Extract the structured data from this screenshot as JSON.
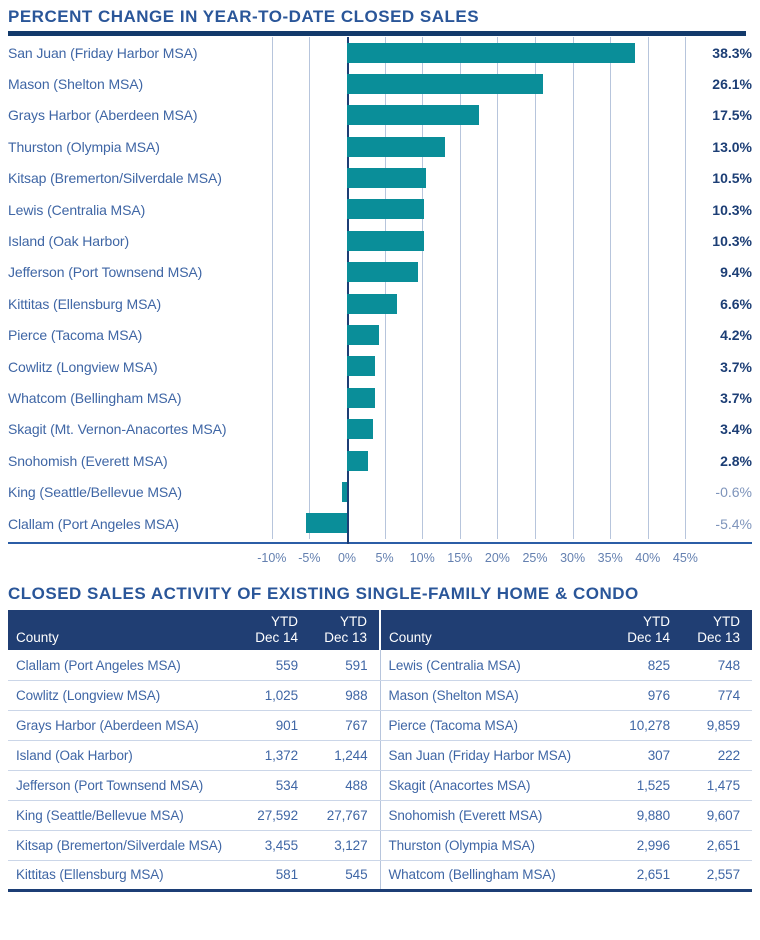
{
  "colors": {
    "bar_teal": "#0a8e99",
    "title_blue": "#2a5699",
    "rule_navy": "#133a6b",
    "label_blue": "#3f66a5",
    "tick_blue": "#6480b0",
    "gridline_blue": "#b7c5dc",
    "baseline_blue": "#2b5da6",
    "value_navy": "#1c3e75",
    "negative_value_blue": "#7e94bb",
    "table_header_bg": "#203e73",
    "row_divider": "#cbd6e8"
  },
  "chart_data": {
    "type": "bar",
    "orientation": "horizontal",
    "title": "PERCENT CHANGE IN YEAR-TO-DATE CLOSED SALES",
    "categories": [
      "San Juan (Friday Harbor MSA)",
      "Mason (Shelton MSA)",
      "Grays Harbor (Aberdeen MSA)",
      "Thurston (Olympia MSA)",
      "Kitsap (Bremerton/Silverdale MSA)",
      "Lewis (Centralia MSA)",
      "Island (Oak Harbor)",
      "Jefferson (Port Townsend MSA)",
      "Kittitas (Ellensburg MSA)",
      "Pierce (Tacoma MSA)",
      "Cowlitz (Longview MSA)",
      "Whatcom (Bellingham MSA)",
      "Skagit (Mt. Vernon-Anacortes MSA)",
      "Snohomish (Everett MSA)",
      "King (Seattle/Bellevue MSA)",
      "Clallam (Port Angeles MSA)"
    ],
    "values": [
      38.3,
      26.1,
      17.5,
      13.0,
      10.5,
      10.3,
      10.3,
      9.4,
      6.6,
      4.2,
      3.7,
      3.7,
      3.4,
      2.8,
      -0.6,
      -5.4
    ],
    "value_labels": [
      "38.3%",
      "26.1%",
      "17.5%",
      "13.0%",
      "10.5%",
      "10.3%",
      "10.3%",
      "9.4%",
      "6.6%",
      "4.2%",
      "3.7%",
      "3.7%",
      "3.4%",
      "2.8%",
      "-0.6%",
      "-5.4%"
    ],
    "x_tick_values": [
      -10,
      -5,
      0,
      5,
      10,
      15,
      20,
      25,
      30,
      35,
      40,
      45
    ],
    "x_tick_labels": [
      "-10%",
      "-5%",
      "0%",
      "5%",
      "10%",
      "15%",
      "20%",
      "25%",
      "30%",
      "35%",
      "40%",
      "45%"
    ],
    "xlim": [
      -12.5,
      47.5
    ],
    "grid": true,
    "legend": "none",
    "bar_color": "#0a8e99"
  },
  "table": {
    "title": "CLOSED SALES ACTIVITY OF EXISTING SINGLE-FAMILY HOME & CONDO",
    "header": {
      "county": "County",
      "cols": [
        {
          "line1": "YTD",
          "line2": "Dec 14"
        },
        {
          "line1": "YTD",
          "line2": "Dec 13"
        }
      ]
    },
    "rows_left": [
      {
        "county": "Clallam (Port Angeles MSA)",
        "ytd14": "559",
        "ytd13": "591"
      },
      {
        "county": "Cowlitz (Longview MSA)",
        "ytd14": "1,025",
        "ytd13": "988"
      },
      {
        "county": "Grays Harbor (Aberdeen MSA)",
        "ytd14": "901",
        "ytd13": "767"
      },
      {
        "county": "Island (Oak Harbor)",
        "ytd14": "1,372",
        "ytd13": "1,244"
      },
      {
        "county": "Jefferson (Port Townsend MSA)",
        "ytd14": "534",
        "ytd13": "488"
      },
      {
        "county": "King (Seattle/Bellevue MSA)",
        "ytd14": "27,592",
        "ytd13": "27,767"
      },
      {
        "county": "Kitsap (Bremerton/Silverdale MSA)",
        "ytd14": "3,455",
        "ytd13": "3,127"
      },
      {
        "county": "Kittitas (Ellensburg MSA)",
        "ytd14": "581",
        "ytd13": "545"
      }
    ],
    "rows_right": [
      {
        "county": "Lewis (Centralia MSA)",
        "ytd14": "825",
        "ytd13": "748"
      },
      {
        "county": "Mason (Shelton MSA)",
        "ytd14": "976",
        "ytd13": "774"
      },
      {
        "county": "Pierce (Tacoma MSA)",
        "ytd14": "10,278",
        "ytd13": "9,859"
      },
      {
        "county": "San Juan (Friday Harbor MSA)",
        "ytd14": "307",
        "ytd13": "222"
      },
      {
        "county": "Skagit (Anacortes MSA)",
        "ytd14": "1,525",
        "ytd13": "1,475"
      },
      {
        "county": "Snohomish (Everett MSA)",
        "ytd14": "9,880",
        "ytd13": "9,607"
      },
      {
        "county": "Thurston (Olympia MSA)",
        "ytd14": "2,996",
        "ytd13": "2,651"
      },
      {
        "county": "Whatcom (Bellingham MSA)",
        "ytd14": "2,651",
        "ytd13": "2,557"
      }
    ]
  }
}
